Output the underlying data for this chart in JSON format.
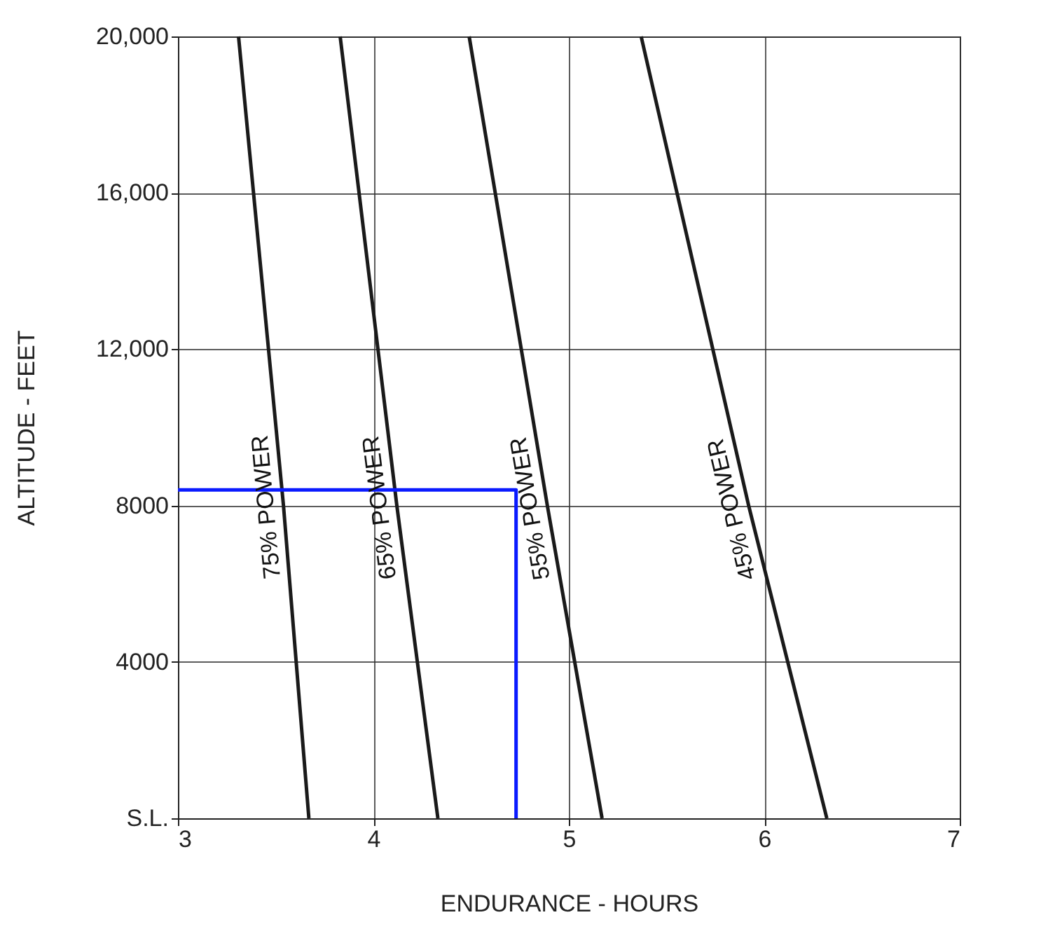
{
  "chart_data": {
    "type": "line",
    "xlabel": "ENDURANCE - HOURS",
    "ylabel": "ALTITUDE - FEET",
    "xlim": [
      3,
      7
    ],
    "xticks": [
      3,
      4,
      5,
      6,
      7
    ],
    "ylim": [
      0,
      20000
    ],
    "yticks": [
      {
        "value": 0,
        "label": "S.L."
      },
      4000,
      8000,
      {
        "value": 12000,
        "label": "12,000"
      },
      {
        "value": 16000,
        "label": "16,000"
      },
      {
        "value": 20000,
        "label": "20,000"
      }
    ],
    "grid": true,
    "legend": false,
    "marker": "none",
    "line_style": "solid",
    "series": [
      {
        "name": "75% POWER",
        "color": "#1a1a1a",
        "x": [
          3.67,
          3.54,
          3.31
        ],
        "values": [
          0,
          8000,
          20000
        ]
      },
      {
        "name": "65% POWER",
        "color": "#1a1a1a",
        "x": [
          4.33,
          4.12,
          3.83
        ],
        "values": [
          0,
          8000,
          20000
        ]
      },
      {
        "name": "55% POWER",
        "color": "#1a1a1a",
        "x": [
          5.17,
          4.89,
          4.49
        ],
        "values": [
          0,
          8000,
          20000
        ]
      },
      {
        "name": "45% POWER",
        "color": "#1a1a1a",
        "x": [
          6.32,
          5.92,
          5.37
        ],
        "values": [
          0,
          8000,
          20000
        ]
      },
      {
        "color": "#0a1aff",
        "x": [
          3,
          4.73,
          4.73
        ],
        "values": [
          8400,
          8400,
          0
        ]
      }
    ]
  }
}
